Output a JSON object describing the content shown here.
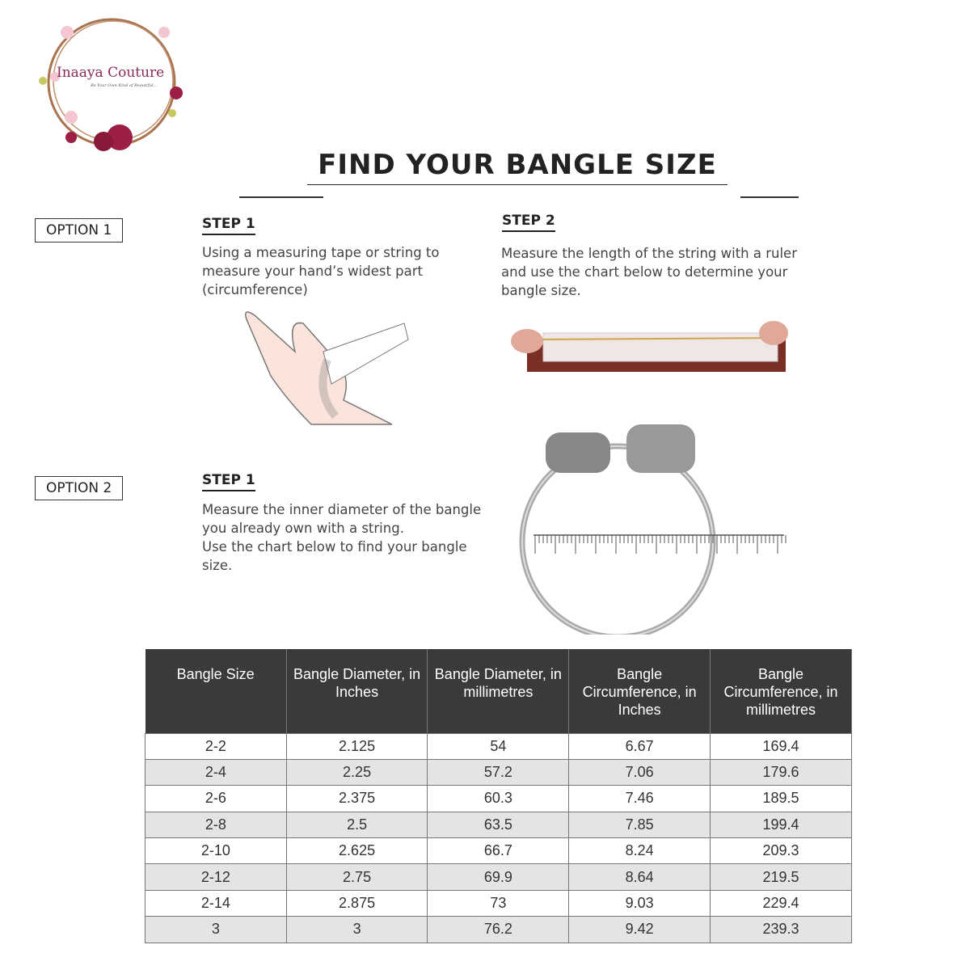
{
  "logo": {
    "name": "Inaaya Couture",
    "tagline": "Be Your Own Kind of Beautiful..."
  },
  "title": "FIND YOUR BANGLE SIZE",
  "option1": {
    "label": "OPTION 1",
    "step1": {
      "label": "STEP 1",
      "lines": [
        "Using a measuring tape or string to",
        "measure your hand’s widest part",
        "(circumference)"
      ]
    },
    "step2": {
      "label": "STEP 2",
      "lines": [
        "Measure the length of the string with a ruler",
        "and use the chart below to determine your",
        "bangle size."
      ]
    }
  },
  "option2": {
    "label": "OPTION 2",
    "step1": {
      "label": "STEP 1",
      "lines": [
        "Measure the inner diameter of the bangle",
        "you already own with a string.",
        "Use the chart below to find your bangle",
        "size."
      ]
    }
  },
  "table": {
    "headers": [
      "Bangle Size",
      "Bangle Diameter, in Inches",
      "Bangle Diameter, in millimetres",
      "Bangle Circumference, in Inches",
      "Bangle Circumference, in millimetres"
    ],
    "rows": [
      [
        "2-2",
        "2.125",
        "54",
        "6.67",
        "169.4"
      ],
      [
        "2-4",
        "2.25",
        "57.2",
        "7.06",
        "179.6"
      ],
      [
        "2-6",
        "2.375",
        "60.3",
        "7.46",
        "189.5"
      ],
      [
        "2-8",
        "2.5",
        "63.5",
        "7.85",
        "199.4"
      ],
      [
        "2-10",
        "2.625",
        "66.7",
        "8.24",
        "209.3"
      ],
      [
        "2-12",
        "2.75",
        "69.9",
        "8.64",
        "219.5"
      ],
      [
        "2-14",
        "2.875",
        "73",
        "9.03",
        "229.4"
      ],
      [
        "3",
        "3",
        "76.2",
        "9.42",
        "239.3"
      ]
    ]
  },
  "colors": {
    "header_bg": "#3a3a3c",
    "alt_row": "#e4e4e4",
    "logo_text": "#8a2a5a"
  }
}
